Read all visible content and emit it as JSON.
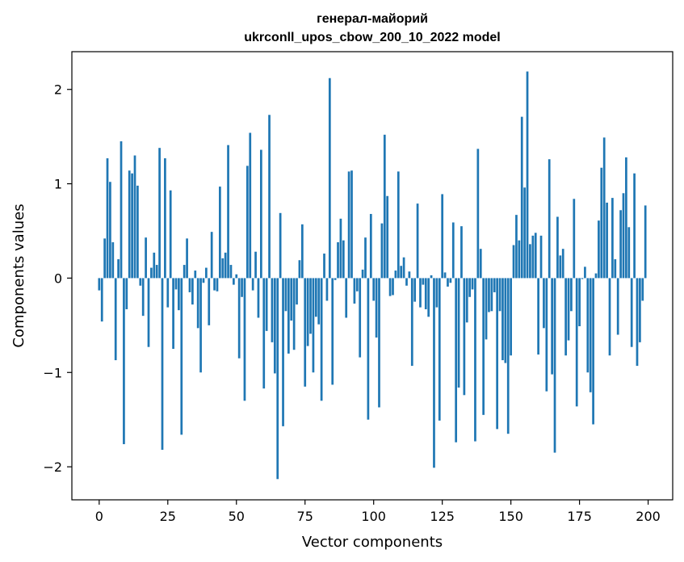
{
  "chart_data": {
    "type": "bar",
    "title": [
      "генерал-майорий",
      "ukrconll_upos_cbow_200_10_2022 model"
    ],
    "xlabel": "Vector components",
    "ylabel": "Components values",
    "xlim": [
      -9.95,
      208.95
    ],
    "ylim": [
      -2.35,
      2.4
    ],
    "xticks": [
      0,
      25,
      50,
      75,
      100,
      125,
      150,
      175,
      200
    ],
    "yticks": [
      -2,
      -1,
      0,
      1,
      2
    ],
    "ytick_labels": [
      "−2",
      "−1",
      "0",
      "1",
      "2"
    ],
    "color": "#1f77b4",
    "values": [
      -0.13,
      -0.46,
      0.42,
      1.27,
      1.02,
      0.38,
      -0.87,
      0.2,
      1.45,
      -1.76,
      -0.33,
      1.14,
      1.11,
      1.3,
      0.98,
      -0.08,
      -0.4,
      0.43,
      -0.73,
      0.11,
      0.27,
      0.14,
      1.38,
      -1.82,
      1.27,
      -0.31,
      0.93,
      -0.75,
      -0.12,
      -0.34,
      -1.66,
      0.14,
      0.42,
      -0.15,
      -0.28,
      0.08,
      -0.53,
      -1.0,
      -0.05,
      0.11,
      -0.5,
      0.49,
      -0.13,
      -0.14,
      0.97,
      0.21,
      0.27,
      1.41,
      0.14,
      -0.07,
      0.04,
      -0.85,
      -0.2,
      -1.3,
      1.19,
      1.54,
      -0.13,
      0.28,
      -0.42,
      1.36,
      -1.17,
      -0.56,
      1.73,
      -0.68,
      -1.01,
      -2.13,
      0.69,
      -1.57,
      -0.35,
      -0.8,
      -0.45,
      -0.76,
      -0.28,
      0.19,
      0.57,
      -1.15,
      -0.72,
      -0.59,
      -1.0,
      -0.41,
      -0.49,
      -1.3,
      0.26,
      -0.24,
      2.12,
      -1.13,
      -0.02,
      0.38,
      0.63,
      0.4,
      -0.42,
      1.13,
      1.14,
      -0.27,
      -0.14,
      -0.84,
      0.09,
      0.43,
      -1.5,
      0.68,
      -0.24,
      -0.63,
      -1.37,
      0.58,
      1.52,
      0.87,
      -0.19,
      -0.18,
      0.08,
      1.13,
      0.13,
      0.22,
      -0.08,
      0.07,
      -0.93,
      -0.25,
      0.79,
      -0.31,
      -0.07,
      -0.33,
      -0.41,
      0.03,
      -2.01,
      -0.31,
      -1.51,
      0.89,
      0.06,
      -0.09,
      -0.05,
      0.59,
      -1.74,
      -1.16,
      0.55,
      -1.24,
      -0.47,
      -0.2,
      -0.12,
      -1.73,
      1.37,
      0.31,
      -1.45,
      -0.65,
      -0.36,
      -0.35,
      -0.15,
      -1.6,
      -0.35,
      -0.87,
      -0.9,
      -1.65,
      -0.82,
      0.35,
      0.67,
      0.4,
      1.71,
      0.96,
      2.19,
      0.36,
      0.45,
      0.48,
      -0.81,
      0.45,
      -0.53,
      -1.2,
      1.26,
      -1.02,
      -1.85,
      0.65,
      0.24,
      0.31,
      -0.82,
      -0.66,
      -0.35,
      0.84,
      -1.36,
      -0.51,
      -0.01,
      0.12,
      -1.0,
      -1.21,
      -1.55,
      0.05,
      0.61,
      1.17,
      1.49,
      0.8,
      -0.82,
      0.85,
      0.2,
      -0.6,
      0.72,
      0.9,
      1.28,
      0.54,
      -0.73,
      1.11,
      -0.93,
      -0.68,
      -0.24,
      0.77
    ]
  }
}
